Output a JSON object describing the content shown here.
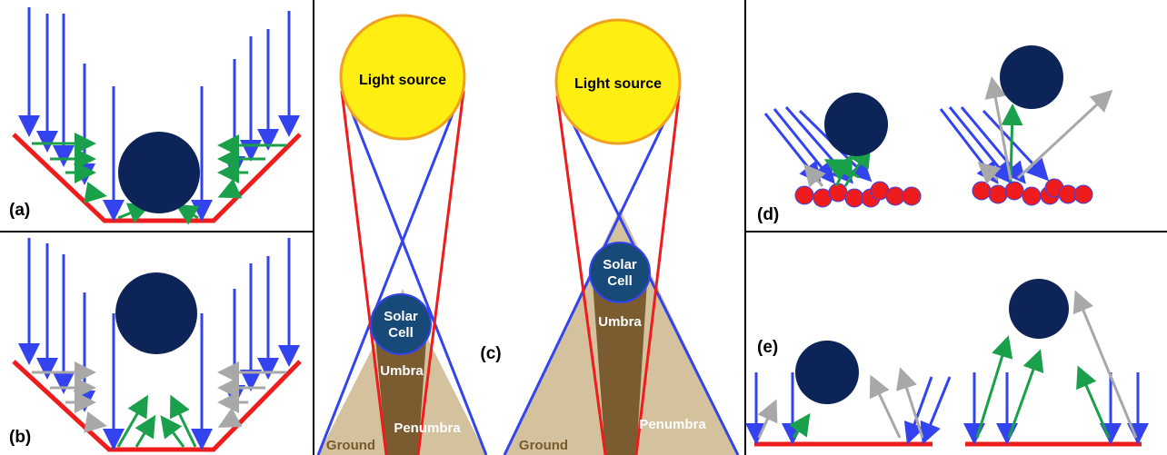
{
  "panels": {
    "a": {
      "label": "(a)"
    },
    "b": {
      "label": "(b)"
    },
    "c": {
      "label": "(c)",
      "left": {
        "light_source": "Light source",
        "solar_cell": [
          "Solar",
          "Cell"
        ],
        "umbra": "Umbra",
        "penumbra": "Penumbra",
        "ground": "Ground"
      },
      "right": {
        "light_source": "Light source",
        "solar_cell": [
          "Solar",
          "Cell"
        ],
        "umbra": "Umbra",
        "penumbra": "Penumbra",
        "ground": "Ground"
      }
    },
    "d": {
      "label": "(d)"
    },
    "e": {
      "label": "(e)"
    }
  }
}
